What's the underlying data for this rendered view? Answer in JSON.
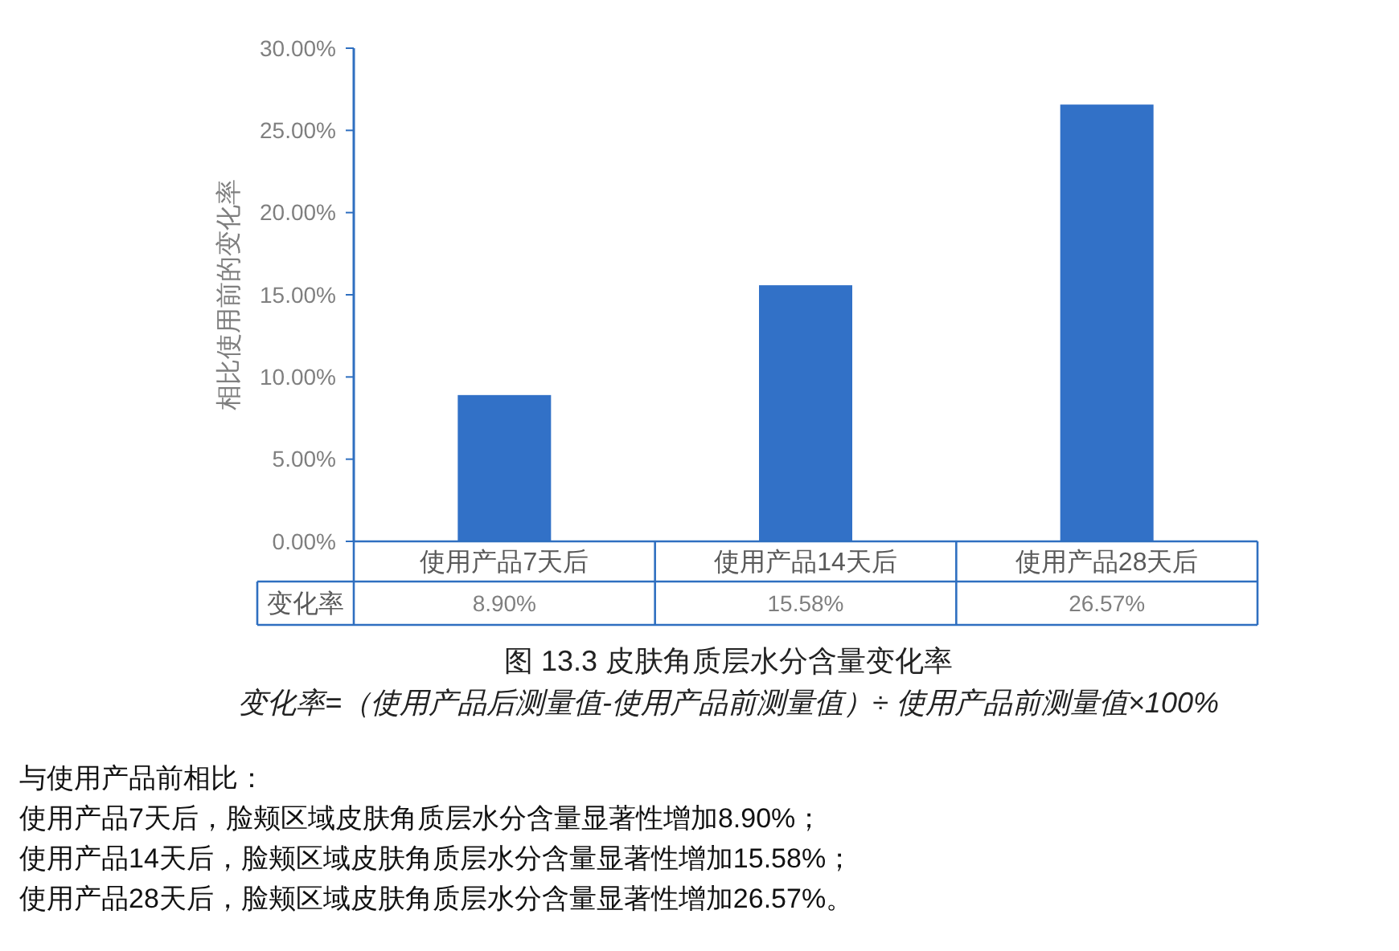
{
  "chart_data": {
    "type": "bar",
    "title": "图 13.3 皮肤角质层水分含量变化率",
    "ylabel": "相比使用前的变化率",
    "categories": [
      "使用产品7天后",
      "使用产品14天后",
      "使用产品28天后"
    ],
    "values": [
      8.9,
      15.58,
      26.57
    ],
    "color": "#3271c7",
    "value_labels": [
      "8.90%",
      "15.58%",
      "26.57%"
    ],
    "ylim": [
      0,
      30
    ],
    "yticks": [
      {
        "value": 0,
        "label": "0.00%"
      },
      {
        "value": 5,
        "label": "5.00%"
      },
      {
        "value": 10,
        "label": "10.00%"
      },
      {
        "value": 15,
        "label": "15.00%"
      },
      {
        "value": 20,
        "label": "20.00%"
      },
      {
        "value": 25,
        "label": "25.00%"
      },
      {
        "value": 30,
        "label": "30.00%"
      }
    ],
    "grid": false,
    "annotations": [
      "变化率",
      "变化率=（使用产品后测量值-使用产品前测量值）÷ 使用产品前测量值×100%",
      "与使用产品前相比：",
      "使用产品7天后，脸颊区域皮肤角质层水分含量显著性增加8.90%；",
      "使用产品14天后，脸颊区域皮肤角质层水分含量显著性增加15.58%；",
      "使用产品28天后，脸颊区域皮肤角质层水分含量显著性增加26.57%。"
    ]
  }
}
